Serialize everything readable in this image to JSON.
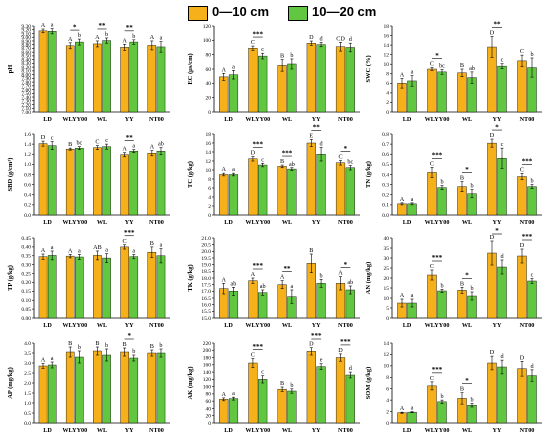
{
  "legend": {
    "items": [
      {
        "label": "0—10 cm",
        "color": "#f5b01a"
      },
      {
        "label": "10—20 cm",
        "color": "#62c740"
      }
    ]
  },
  "colors": {
    "series1": "#f5b01a",
    "series2": "#62c740",
    "axis": "#000000"
  },
  "chart_data": [
    {
      "id": "ph",
      "type": "bar",
      "ylabel": "pH",
      "categories": [
        "LD",
        "WLYY00",
        "WL",
        "YY",
        "NT00"
      ],
      "ylim": [
        7.0,
        9.3
      ],
      "ticks": [
        7.0,
        7.1,
        7.2,
        7.3,
        7.4,
        7.5,
        7.6,
        7.7,
        7.8,
        7.9,
        8.0,
        8.1,
        8.2,
        8.3,
        8.4,
        8.5,
        8.6,
        8.7,
        8.8,
        8.9,
        9.0,
        9.1,
        9.2,
        9.3
      ],
      "series": [
        {
          "name": "0—10 cm",
          "values": [
            9.17,
            8.77,
            8.82,
            8.73,
            8.78
          ],
          "errors": [
            0.05,
            0.08,
            0.08,
            0.08,
            0.12
          ],
          "letters": [
            "A",
            "A",
            "A",
            "A",
            "A"
          ]
        },
        {
          "name": "10—20 cm",
          "values": [
            9.16,
            8.87,
            8.91,
            8.87,
            8.74
          ],
          "errors": [
            0.07,
            0.08,
            0.07,
            0.06,
            0.14
          ],
          "letters": [
            "a",
            "b",
            "b",
            "b",
            "a"
          ]
        }
      ],
      "significance": [
        "",
        "*",
        "**",
        "**",
        ""
      ]
    },
    {
      "id": "ec",
      "type": "bar",
      "ylabel": "EC (μs/cm)",
      "categories": [
        "LD",
        "WLYY00",
        "WL",
        "YY",
        "NT00"
      ],
      "ylim": [
        0,
        120
      ],
      "ticks": [
        0,
        20,
        40,
        60,
        80,
        100,
        120
      ],
      "series": [
        {
          "name": "0—10 cm",
          "values": [
            49,
            89,
            65,
            96,
            91
          ],
          "errors": [
            5,
            3,
            8,
            3,
            6
          ],
          "letters": [
            "A",
            "C",
            "B",
            "D",
            "CD"
          ]
        },
        {
          "name": "10—20 cm",
          "values": [
            52,
            78,
            67,
            94,
            90
          ],
          "errors": [
            6,
            4,
            7,
            3,
            6
          ],
          "letters": [
            "a",
            "c",
            "b",
            "d",
            "d"
          ]
        }
      ],
      "significance": [
        "",
        "***",
        "",
        "",
        ""
      ]
    },
    {
      "id": "swc",
      "type": "bar",
      "ylabel": "SWC (%)",
      "categories": [
        "LD",
        "WLYY00",
        "WL",
        "YY",
        "NT00"
      ],
      "ylim": [
        0,
        18
      ],
      "ticks": [
        0,
        2,
        4,
        6,
        8,
        10,
        12,
        14,
        16,
        18
      ],
      "series": [
        {
          "name": "0—10 cm",
          "values": [
            6.0,
            9.0,
            8.2,
            13.6,
            10.7
          ],
          "errors": [
            1.0,
            0.3,
            0.8,
            2.2,
            1.2
          ],
          "letters": [
            "A",
            "C",
            "B",
            "D",
            "C"
          ]
        },
        {
          "name": "10—20 cm",
          "values": [
            6.5,
            8.4,
            7.2,
            9.6,
            9.3
          ],
          "errors": [
            1.1,
            0.5,
            1.2,
            0.5,
            2.0
          ],
          "letters": [
            "a",
            "bc",
            "ab",
            "c",
            "b"
          ]
        }
      ],
      "significance": [
        "",
        "*",
        "",
        "**",
        ""
      ]
    },
    {
      "id": "sbd",
      "type": "bar",
      "ylabel": "SBD (g/cm³)",
      "categories": [
        "LD",
        "WLYY00",
        "WL",
        "YY",
        "NT00"
      ],
      "ylim": [
        0.0,
        1.6
      ],
      "ticks": [
        0.0,
        0.2,
        0.4,
        0.6,
        0.8,
        1.0,
        1.2,
        1.4,
        1.6
      ],
      "series": [
        {
          "name": "0—10 cm",
          "values": [
            1.41,
            1.3,
            1.33,
            1.19,
            1.22
          ],
          "errors": [
            0.05,
            0.02,
            0.04,
            0.04,
            0.05
          ],
          "letters": [
            "D",
            "B",
            "C",
            "A",
            "A"
          ]
        },
        {
          "name": "10—20 cm",
          "values": [
            1.37,
            1.32,
            1.35,
            1.26,
            1.26
          ],
          "errors": [
            0.08,
            0.03,
            0.05,
            0.03,
            0.07
          ],
          "letters": [
            "c",
            "bc",
            "c",
            "a",
            "ab"
          ]
        }
      ],
      "significance": [
        "",
        "",
        "",
        "**",
        ""
      ]
    },
    {
      "id": "tc",
      "type": "bar",
      "ylabel": "TC (g/kg)",
      "categories": [
        "LD",
        "WLYY00",
        "WL",
        "YY",
        "NT00"
      ],
      "ylim": [
        0,
        18
      ],
      "ticks": [
        0,
        2,
        4,
        6,
        8,
        10,
        12,
        14,
        16,
        18
      ],
      "series": [
        {
          "name": "0—10 cm",
          "values": [
            9.0,
            12.5,
            10.8,
            16.0,
            11.6
          ],
          "errors": [
            0.3,
            0.5,
            0.3,
            0.8,
            0.5
          ],
          "letters": [
            "A",
            "D",
            "B",
            "E",
            "C"
          ]
        },
        {
          "name": "10—20 cm",
          "values": [
            9.0,
            11.1,
            10.2,
            13.5,
            10.5
          ],
          "errors": [
            0.3,
            0.4,
            0.3,
            1.5,
            0.5
          ],
          "letters": [
            "a",
            "c",
            "ab",
            "d",
            "bc"
          ]
        }
      ],
      "significance": [
        "",
        "***",
        "***",
        "**",
        "*"
      ]
    },
    {
      "id": "tn",
      "type": "bar",
      "ylabel": "TN (g/kg)",
      "categories": [
        "LD",
        "WLYY00",
        "WL",
        "YY",
        "NT00"
      ],
      "ylim": [
        0.0,
        0.8
      ],
      "ticks": [
        0.0,
        0.1,
        0.2,
        0.3,
        0.4,
        0.5,
        0.6,
        0.7,
        0.8
      ],
      "series": [
        {
          "name": "0—10 cm",
          "values": [
            0.11,
            0.42,
            0.28,
            0.71,
            0.38
          ],
          "errors": [
            0.01,
            0.05,
            0.05,
            0.04,
            0.03
          ],
          "letters": [
            "A",
            "C",
            "B",
            "D",
            "C"
          ]
        },
        {
          "name": "10—20 cm",
          "values": [
            0.11,
            0.27,
            0.21,
            0.56,
            0.28
          ],
          "errors": [
            0.01,
            0.02,
            0.04,
            0.1,
            0.02
          ],
          "letters": [
            "a",
            "b",
            "b",
            "c",
            "b"
          ]
        }
      ],
      "significance": [
        "",
        "***",
        "*",
        "*",
        "***"
      ]
    },
    {
      "id": "tp",
      "type": "bar",
      "ylabel": "TP (g/kg)",
      "categories": [
        "LD",
        "WLYY00",
        "WL",
        "YY",
        "NT00"
      ],
      "ylim": [
        0.0,
        0.45
      ],
      "ticks": [
        0.0,
        0.05,
        0.1,
        0.15,
        0.2,
        0.25,
        0.3,
        0.35,
        0.4,
        0.45
      ],
      "series": [
        {
          "name": "0—10 cm",
          "values": [
            0.345,
            0.348,
            0.352,
            0.4,
            0.37
          ],
          "errors": [
            0.015,
            0.01,
            0.025,
            0.012,
            0.03
          ],
          "letters": [
            "A",
            "A",
            "AB",
            "C",
            "B"
          ]
        },
        {
          "name": "10—20 cm",
          "values": [
            0.352,
            0.343,
            0.337,
            0.345,
            0.35
          ],
          "errors": [
            0.025,
            0.015,
            0.025,
            0.012,
            0.04
          ],
          "letters": [
            "a",
            "a",
            "a",
            "a",
            "a"
          ]
        }
      ],
      "significance": [
        "",
        "",
        "",
        "***",
        ""
      ]
    },
    {
      "id": "tk",
      "type": "bar",
      "ylabel": "TK (g/kg)",
      "categories": [
        "LD",
        "WLYY00",
        "WL",
        "YY",
        "NT00"
      ],
      "ylim": [
        15.0,
        21.0
      ],
      "ticks": [
        15.0,
        15.5,
        16.0,
        16.5,
        17.0,
        17.5,
        18.0,
        18.5,
        19.0,
        19.5,
        20.0,
        20.5,
        21.0
      ],
      "series": [
        {
          "name": "0—10 cm",
          "values": [
            17.2,
            17.8,
            17.5,
            19.1,
            17.6
          ],
          "errors": [
            0.4,
            0.2,
            0.3,
            0.7,
            0.5
          ],
          "letters": [
            "A",
            "A",
            "A",
            "B",
            "A"
          ]
        },
        {
          "name": "10—20 cm",
          "values": [
            17.0,
            16.9,
            16.6,
            17.6,
            17.1
          ],
          "errors": [
            0.3,
            0.2,
            0.5,
            0.3,
            0.3
          ],
          "letters": [
            "ab",
            "ab",
            "a",
            "b",
            "ab"
          ]
        }
      ],
      "significance": [
        "",
        "***",
        "**",
        "",
        "*"
      ]
    },
    {
      "id": "an",
      "type": "bar",
      "ylabel": "AN (mg/kg)",
      "categories": [
        "LD",
        "WLYY00",
        "WL",
        "YY",
        "NT00"
      ],
      "ylim": [
        0,
        40
      ],
      "ticks": [
        0,
        5,
        10,
        15,
        20,
        25,
        30,
        35,
        40
      ],
      "series": [
        {
          "name": "0—10 cm",
          "values": [
            7.5,
            21.5,
            13.8,
            32.5,
            31.0
          ],
          "errors": [
            2.0,
            2.5,
            1.5,
            6.0,
            3.5
          ],
          "letters": [
            "A",
            "C",
            "B",
            "D",
            "D"
          ]
        },
        {
          "name": "10—20 cm",
          "values": [
            7.5,
            13.5,
            11.0,
            25.5,
            18.5
          ],
          "errors": [
            2.0,
            0.8,
            2.0,
            3.5,
            1.2
          ],
          "letters": [
            "a",
            "b",
            "b",
            "d",
            "c"
          ]
        }
      ],
      "significance": [
        "",
        "***",
        "*",
        "*",
        "***"
      ]
    },
    {
      "id": "ap",
      "type": "bar",
      "ylabel": "AP (mg/kg)",
      "categories": [
        "LD",
        "WLYY00",
        "WL",
        "YY",
        "NT00"
      ],
      "ylim": [
        0.0,
        4.0
      ],
      "ticks": [
        0.0,
        0.5,
        1.0,
        1.5,
        2.0,
        2.5,
        3.0,
        3.5,
        4.0
      ],
      "series": [
        {
          "name": "0—10 cm",
          "values": [
            2.85,
            3.55,
            3.6,
            3.55,
            3.5
          ],
          "errors": [
            0.12,
            0.25,
            0.2,
            0.2,
            0.15
          ],
          "letters": [
            "A",
            "B",
            "B",
            "B",
            "B"
          ]
        },
        {
          "name": "10—20 cm",
          "values": [
            2.9,
            3.3,
            3.4,
            3.25,
            3.5
          ],
          "errors": [
            0.15,
            0.3,
            0.3,
            0.15,
            0.2
          ],
          "letters": [
            "a",
            "b",
            "b",
            "b",
            "b"
          ]
        }
      ],
      "significance": [
        "",
        "",
        "",
        "*",
        ""
      ]
    },
    {
      "id": "ak",
      "type": "bar",
      "ylabel": "AK (mg/kg)",
      "categories": [
        "LD",
        "WLYY00",
        "WL",
        "YY",
        "NT00"
      ],
      "ylim": [
        0,
        220
      ],
      "ticks": [
        0,
        20,
        40,
        60,
        80,
        100,
        120,
        140,
        160,
        180,
        200,
        220
      ],
      "series": [
        {
          "name": "0—10 cm",
          "values": [
            65,
            165,
            93,
            197,
            180
          ],
          "errors": [
            4,
            12,
            6,
            10,
            10
          ],
          "letters": [
            "A",
            "C",
            "B",
            "D",
            "D"
          ]
        },
        {
          "name": "10—20 cm",
          "values": [
            67,
            120,
            88,
            155,
            132
          ],
          "errors": [
            4,
            10,
            6,
            8,
            8
          ],
          "letters": [
            "a",
            "c",
            "b",
            "e",
            "d"
          ]
        }
      ],
      "significance": [
        "",
        "***",
        "",
        "***",
        "***"
      ]
    },
    {
      "id": "som",
      "type": "bar",
      "ylabel": "SOM (g/kg)",
      "categories": [
        "LD",
        "WLYY00",
        "WL",
        "YY",
        "NT00"
      ],
      "ylim": [
        0,
        14
      ],
      "ticks": [
        0,
        2,
        4,
        6,
        8,
        10,
        12,
        14
      ],
      "series": [
        {
          "name": "0—10 cm",
          "values": [
            1.8,
            6.5,
            4.3,
            10.5,
            9.5
          ],
          "errors": [
            0.1,
            0.7,
            1.0,
            1.2,
            1.3
          ],
          "letters": [
            "A",
            "C",
            "B",
            "D",
            "D"
          ]
        },
        {
          "name": "10—20 cm",
          "values": [
            1.9,
            3.7,
            3.1,
            9.8,
            8.3
          ],
          "errors": [
            0.1,
            0.3,
            0.3,
            1.2,
            1.0
          ],
          "letters": [
            "a",
            "b",
            "b",
            "d",
            "d"
          ]
        }
      ],
      "significance": [
        "",
        "***",
        "*",
        "",
        ""
      ]
    }
  ]
}
